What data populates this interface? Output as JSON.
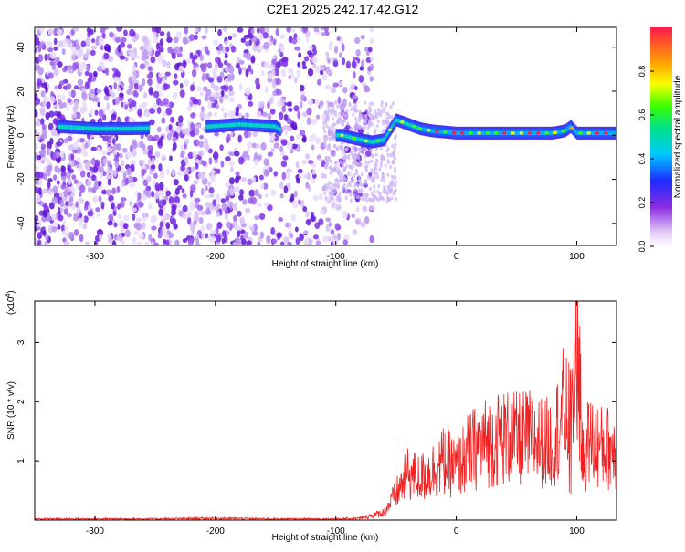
{
  "title": "C2E1.2025.242.17.42.G12",
  "colors": {
    "snr_line": "#ee2222",
    "spectrogram_noise": "#7b2ee6",
    "frame": "#000000"
  },
  "chart_data": [
    {
      "type": "heatmap",
      "xlabel": "Height of straight line (km)",
      "ylabel": "Frequency (Hz)",
      "xlim": [
        -350,
        133
      ],
      "ylim": [
        -50,
        49
      ],
      "xticks": [
        -300,
        -200,
        -100,
        0,
        100
      ],
      "yticks": [
        -40,
        -20,
        0,
        20,
        40
      ],
      "colorbar": {
        "label": "Normalized spectral amplitude",
        "range": [
          0,
          1
        ],
        "ticks": [
          0.0,
          0.2,
          0.4,
          0.6,
          0.8
        ],
        "colormap": "rainbow (white-purple-blue-cyan-green-yellow-orange-red)"
      },
      "signal_trace": {
        "x": [
          -330,
          -300,
          -270,
          -205,
          -180,
          -150,
          -140,
          -95,
          -80,
          -70,
          -60,
          -50,
          -40,
          -30,
          -20,
          0,
          40,
          80,
          90,
          95,
          100,
          133
        ],
        "y": [
          4,
          3,
          3,
          4,
          5,
          4,
          0,
          0,
          -2,
          -3,
          -2,
          7,
          5,
          3,
          2,
          1,
          1,
          1,
          2,
          4,
          1,
          1
        ]
      },
      "noise_region_x": [
        -350,
        -70
      ]
    },
    {
      "type": "line",
      "xlabel": "Height of straight line (km)",
      "ylabel": "SNR (10 * v/v)",
      "y_multiplier_label": "(x10",
      "y_multiplier_exp": "4",
      "y_multiplier_close": ")",
      "xlim": [
        -350,
        133
      ],
      "ylim": [
        0,
        3.7
      ],
      "xticks": [
        -300,
        -200,
        -100,
        0,
        100
      ],
      "yticks": [
        1,
        2,
        3
      ],
      "series": [
        {
          "x": [
            -350,
            -300,
            -250,
            -200,
            -150,
            -100,
            -80,
            -60,
            -50,
            -40,
            -30,
            -20,
            -10,
            0,
            10,
            20,
            30,
            40,
            50,
            60,
            70,
            80,
            90,
            95,
            100,
            105,
            110,
            120,
            133
          ],
          "y": [
            0.02,
            0.02,
            0.02,
            0.03,
            0.02,
            0.02,
            0.03,
            0.15,
            0.5,
            0.9,
            0.8,
            0.95,
            1.15,
            1.0,
            1.3,
            1.45,
            1.55,
            1.6,
            1.55,
            1.6,
            1.5,
            1.5,
            2.2,
            1.8,
            3.7,
            1.1,
            1.55,
            1.4,
            1.4
          ]
        }
      ]
    }
  ]
}
